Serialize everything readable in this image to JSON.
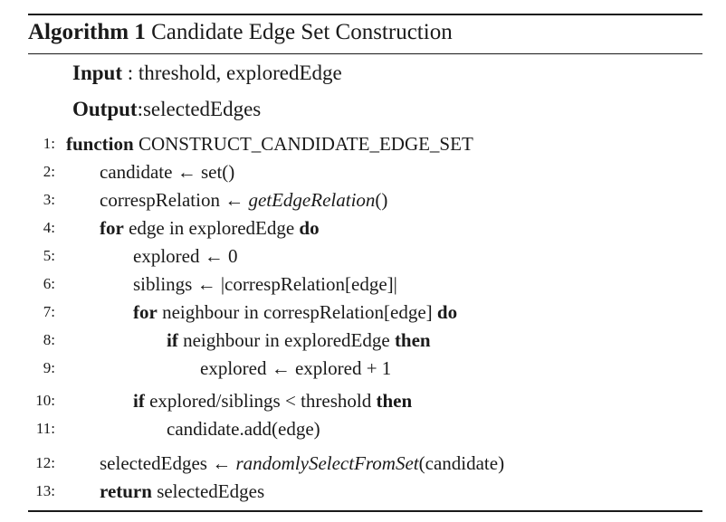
{
  "algorithm": {
    "label": "Algorithm 1",
    "title": "Candidate Edge Set Construction",
    "input_label": "Input",
    "input_value": " : threshold, exploredEdge",
    "output_label": "Output",
    "output_value": ":selectedEdges"
  },
  "lines": [
    {
      "no": "1:",
      "indent": 0,
      "segments": [
        {
          "t": "function",
          "s": "kw"
        },
        {
          "t": " CONSTRUCT_CANDIDATE_EDGE_SET",
          "s": ""
        }
      ]
    },
    {
      "no": "2:",
      "indent": 1,
      "segments": [
        {
          "t": "candidate ← set()",
          "s": ""
        }
      ]
    },
    {
      "no": "3:",
      "indent": 1,
      "segments": [
        {
          "t": "correspRelation ← ",
          "s": ""
        },
        {
          "t": "getEdgeRelation",
          "s": "it"
        },
        {
          "t": "()",
          "s": ""
        }
      ]
    },
    {
      "no": "4:",
      "indent": 1,
      "segments": [
        {
          "t": "for",
          "s": "kw"
        },
        {
          "t": " edge in exploredEdge ",
          "s": ""
        },
        {
          "t": "do",
          "s": "kw"
        }
      ]
    },
    {
      "no": "5:",
      "indent": 2,
      "segments": [
        {
          "t": "explored ← 0",
          "s": ""
        }
      ]
    },
    {
      "no": "6:",
      "indent": 2,
      "segments": [
        {
          "t": "siblings ← |correspRelation[edge]|",
          "s": ""
        }
      ]
    },
    {
      "no": "7:",
      "indent": 2,
      "segments": [
        {
          "t": "for",
          "s": "kw"
        },
        {
          "t": " neighbour in correspRelation[edge] ",
          "s": ""
        },
        {
          "t": "do",
          "s": "kw"
        }
      ]
    },
    {
      "no": "8:",
      "indent": 3,
      "segments": [
        {
          "t": "if",
          "s": "kw"
        },
        {
          "t": " neighbour in exploredEdge ",
          "s": ""
        },
        {
          "t": "then",
          "s": "kw"
        }
      ]
    },
    {
      "no": "9:",
      "indent": 4,
      "segments": [
        {
          "t": "explored ← explored + 1",
          "s": ""
        }
      ]
    },
    {
      "no": "10:",
      "indent": 2,
      "segments": [
        {
          "t": "if",
          "s": "kw"
        },
        {
          "t": " explored/siblings < threshold ",
          "s": ""
        },
        {
          "t": "then",
          "s": "kw"
        }
      ]
    },
    {
      "no": "11:",
      "indent": 3,
      "segments": [
        {
          "t": "candidate.add(edge)",
          "s": ""
        }
      ]
    },
    {
      "no": "12:",
      "indent": 1,
      "segments": [
        {
          "t": "selectedEdges ← ",
          "s": ""
        },
        {
          "t": "randomlySelectFromSet",
          "s": "it"
        },
        {
          "t": "(candidate)",
          "s": ""
        }
      ]
    },
    {
      "no": "13:",
      "indent": 1,
      "segments": [
        {
          "t": "return",
          "s": "kw"
        },
        {
          "t": " selectedEdges",
          "s": ""
        }
      ]
    }
  ]
}
